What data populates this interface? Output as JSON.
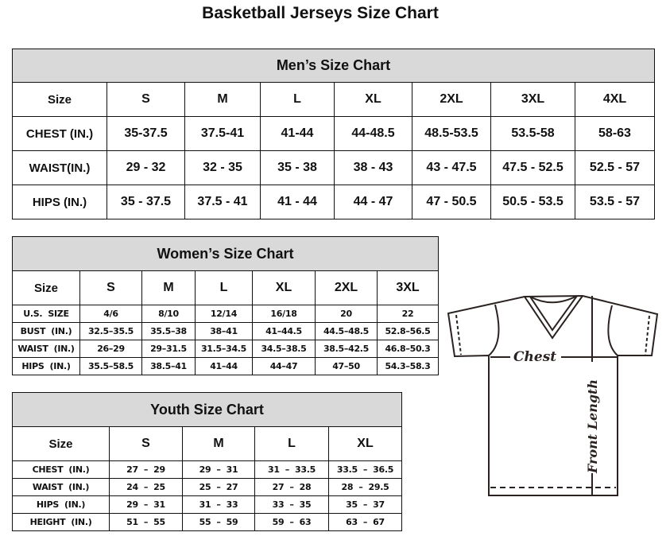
{
  "title": "Basketball Jerseys Size Chart",
  "men": {
    "caption": "Men’s Size Chart",
    "header": [
      "Size",
      "S",
      "M",
      "L",
      "XL",
      "2XL",
      "3XL",
      "4XL"
    ],
    "rows": [
      [
        "CHEST (IN.)",
        "35-37.5",
        "37.5-41",
        "41-44",
        "44-48.5",
        "48.5-53.5",
        "53.5-58",
        "58-63"
      ],
      [
        "WAIST(IN.)",
        "29 - 32",
        "32 - 35",
        "35 - 38",
        "38 - 43",
        "43 - 47.5",
        "47.5 - 52.5",
        "52.5 - 57"
      ],
      [
        "HIPS (IN.)",
        "35 - 37.5",
        "37.5 - 41",
        "41 - 44",
        "44 - 47",
        "47 - 50.5",
        "50.5 - 53.5",
        "53.5 - 57"
      ]
    ]
  },
  "women": {
    "caption": "Women’s Size Chart",
    "header": [
      "Size",
      "S",
      "M",
      "L",
      "XL",
      "2XL",
      "3XL"
    ],
    "rows": [
      [
        "U.S.  SIZE",
        "4/6",
        "8/10",
        "12/14",
        "16/18",
        "20",
        "22"
      ],
      [
        "BUST  (IN.)",
        "32.5–35.5",
        "35.5–38",
        "38–41",
        "41–44.5",
        "44.5–48.5",
        "52.8–56.5"
      ],
      [
        "WAIST  (IN.)",
        "26–29",
        "29–31.5",
        "31.5–34.5",
        "34.5–38.5",
        "38.5–42.5",
        "46.8–50.3"
      ],
      [
        "HIPS  (IN.)",
        "35.5–58.5",
        "38.5–41",
        "41–44",
        "44–47",
        "47–50",
        "54.3–58.3"
      ]
    ]
  },
  "youth": {
    "caption": "Youth Size Chart",
    "header": [
      "Size",
      "S",
      "M",
      "L",
      "XL"
    ],
    "rows": [
      [
        "CHEST  (IN.)",
        "27  –  29",
        "29  –  31",
        "31  –  33.5",
        "33.5  –  36.5"
      ],
      [
        "WAIST  (IN.)",
        "24  –  25",
        "25  –  27",
        "27  –  28",
        "28  –  29.5"
      ],
      [
        "HIPS  (IN.)",
        "29  –  31",
        "31  –  33",
        "33  –  35",
        "35  –  37"
      ],
      [
        "HEIGHT  (IN.)",
        "51  –  55",
        "55  –  59",
        "59  –  63",
        "63  –  67"
      ]
    ]
  },
  "diagram": {
    "chest_label": "Chest",
    "length_label": "Front Length"
  }
}
